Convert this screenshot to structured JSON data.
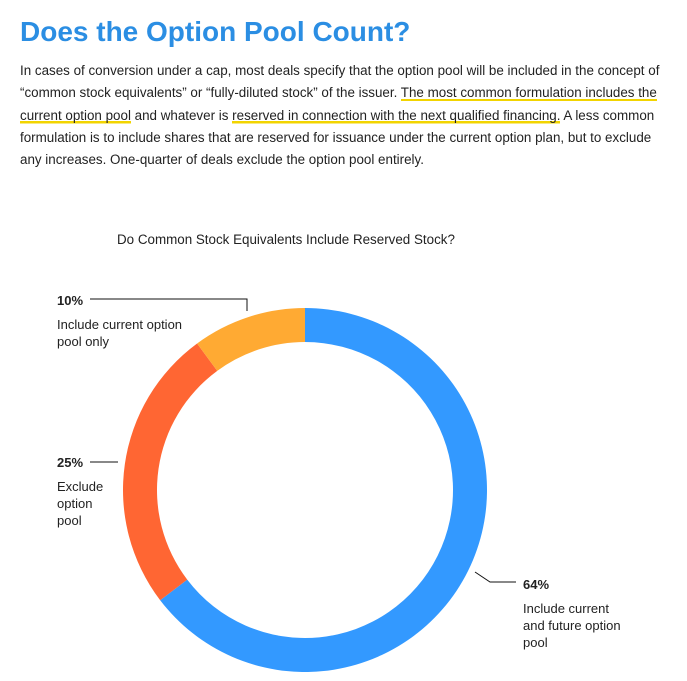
{
  "page": {
    "title": "Does the Option Pool Count?",
    "paragraph": {
      "s1": "In cases of conversion under a cap, most deals specify that the option pool will be included in the concept of “common stock equivalents” or “fully-diluted stock” of the issuer. ",
      "s2a": "The most common formulation includes the ",
      "s2b": "current option pool",
      "s2c": " and whatever is ",
      "s2d": "reserved in connection with the next qualified financing.",
      "s3": " A less common formulation is to include shares that are reserved for issuance under the current option plan, but to exclude any increases. One-quarter of deals exclude the option pool entirely."
    },
    "highlight_color": "#f2d400",
    "title_color": "#2b8ee3"
  },
  "chart_data": {
    "type": "pie",
    "subtype": "donut",
    "title": "Do Common Stock Equivalents Include Reserved Stock?",
    "slices": [
      {
        "label": "Include current and future option pool",
        "value": 64,
        "value_label": "64%",
        "color": "#3399ff"
      },
      {
        "label": "Exclude option pool",
        "value": 25,
        "value_label": "25%",
        "color": "#ff6633"
      },
      {
        "label": "Include current option pool only",
        "value": 10,
        "value_label": "10%",
        "color": "#ffaa33"
      }
    ],
    "legend": "none"
  }
}
